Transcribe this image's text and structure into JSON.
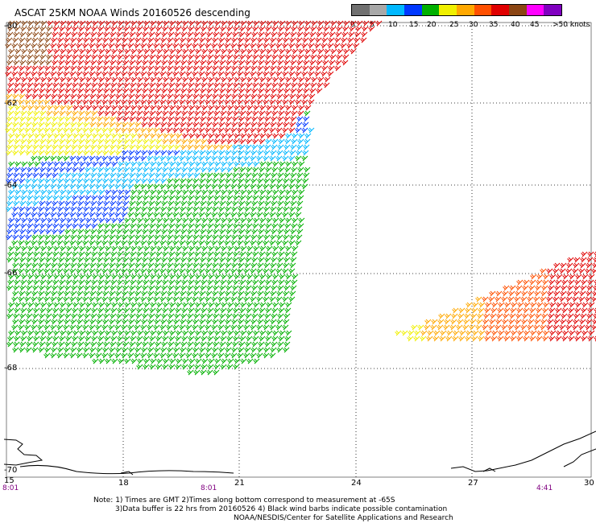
{
  "title": "ASCAT 25KM NOAA Winds 20160526 descending",
  "legend": {
    "labels": [
      "0",
      "5",
      "10",
      "15",
      "20",
      "25",
      "30",
      "35",
      "40",
      "45",
      ">50 knots"
    ],
    "colors": [
      "#707070",
      "#a8a8a8",
      "#00b8ff",
      "#0038ff",
      "#00b000",
      "#f0f000",
      "#ffa800",
      "#ff5000",
      "#e00000",
      "#8b4513",
      "#ff00ff",
      "#8000c0"
    ]
  },
  "map": {
    "lat_labels": [
      "-60",
      "-62",
      "-64",
      "-66",
      "-68",
      "-70"
    ],
    "lon_labels": [
      "15",
      "18",
      "21",
      "24",
      "27",
      "30"
    ],
    "time_labels": [
      "8:01",
      "8:01",
      "4:41"
    ],
    "wind_color_scale_knots": [
      0,
      5,
      10,
      15,
      20,
      25,
      30,
      35,
      40,
      45,
      50
    ]
  },
  "notes": [
    "Note: 1) Times are GMT 2)Times along bottom correspond to measurement at -65S",
    "3)Data buffer is 22 hrs from 20160526 4) Black wind barbs indicate possible contamination",
    "NOAA/NESDIS/Center for Satellite Applications and Research"
  ]
}
